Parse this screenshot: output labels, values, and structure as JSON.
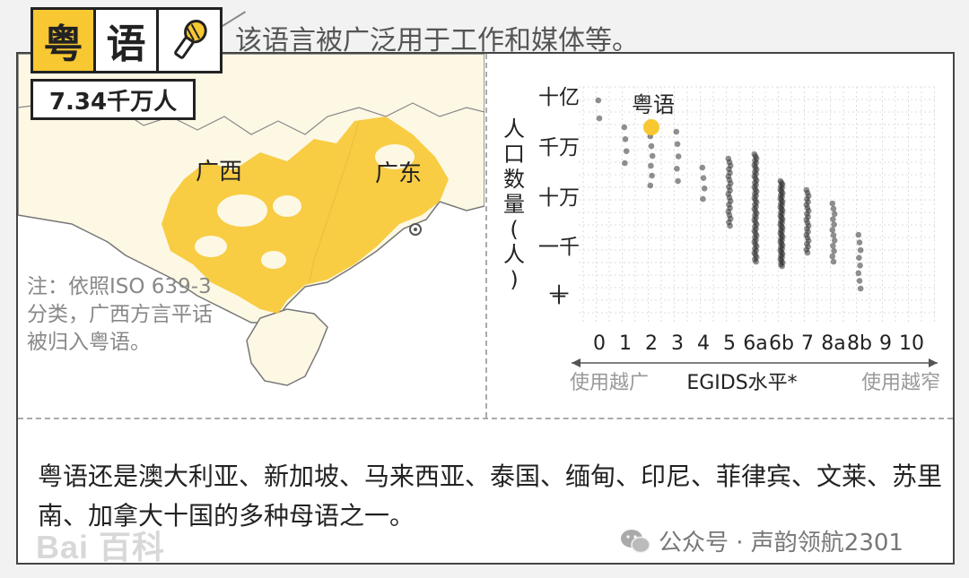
{
  "title": {
    "char1": "粤",
    "char2": "语",
    "population": "7.34千万人"
  },
  "header_note": "该语言被广泛用于工作和媒体等。",
  "map": {
    "labels": {
      "guangxi": "广西",
      "guangdong": "广东"
    },
    "note_lines": [
      "注：依照ISO 639-3",
      "分类，广西方言平话",
      "被归入粤语。"
    ],
    "fill_color": "#f7c832"
  },
  "chart_data": {
    "type": "scatter",
    "title": "",
    "highlight": {
      "label": "粤语",
      "x": "2",
      "y": "千万+",
      "color": "#f7c832"
    },
    "xlabel": "EGIDS水平*",
    "xlabel_left": "使用越广",
    "xlabel_right": "使用越窄",
    "x_categories": [
      "0",
      "1",
      "2",
      "3",
      "4",
      "5",
      "6a",
      "6b",
      "7",
      "8a",
      "8b",
      "9",
      "10"
    ],
    "ylabel": "人口数量(人)",
    "y_ticks": [
      "十亿",
      "千万",
      "十万",
      "一千",
      "十"
    ],
    "grid": true,
    "points": [
      {
        "x": "0",
        "count": 2
      },
      {
        "x": "1",
        "count": 4
      },
      {
        "x": "2",
        "count": 6
      },
      {
        "x": "3",
        "count": 5
      },
      {
        "x": "4",
        "count": 4
      },
      {
        "x": "5",
        "count": 20
      },
      {
        "x": "6a",
        "count": 50
      },
      {
        "x": "6b",
        "count": 50
      },
      {
        "x": "7",
        "count": 22
      },
      {
        "x": "8a",
        "count": 12
      },
      {
        "x": "8b",
        "count": 8
      }
    ]
  },
  "bottom_text": "粤语还是澳大利亚、新加坡、马来西亚、泰国、缅甸、印尼、菲律宾、文莱、苏里南、加拿大十国的多种母语之一。",
  "watermark": "Bai 百科",
  "footer": {
    "icon": "wechat-icon",
    "text": "公众号 · 声韵领航2301"
  }
}
